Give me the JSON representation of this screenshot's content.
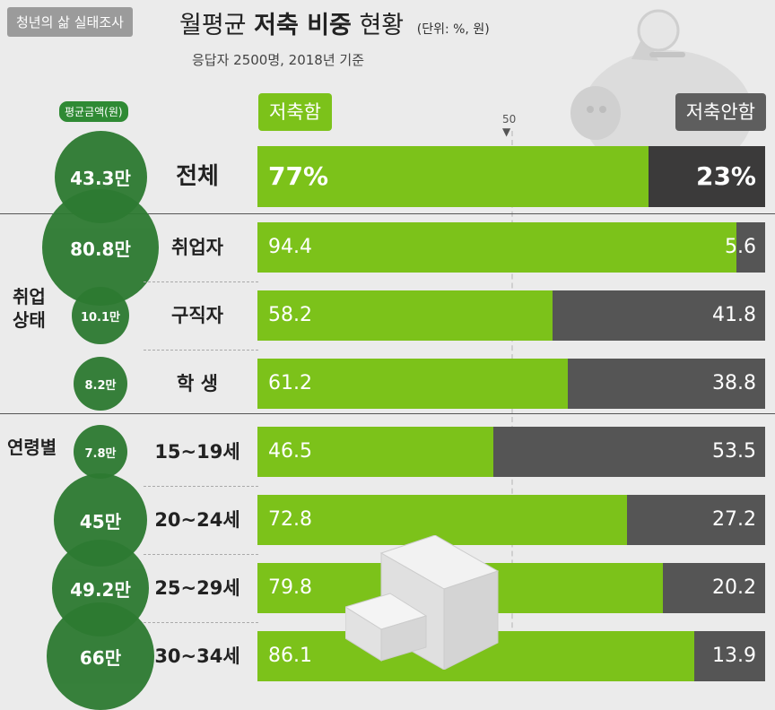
{
  "header": {
    "badge": "청년의 삶 실태조사",
    "title_prefix": "월평균 ",
    "title_bold": "저축 비중",
    "title_suffix": " 현황",
    "unit": "(단위: %, 원)",
    "subtitle": "응답자 2500명, 2018년 기준"
  },
  "legend": {
    "save": "저축함",
    "nosave": "저축안함",
    "avg_label": "평균금액(원)",
    "fifty_mark": "50"
  },
  "groups": {
    "employment": "취업\n상태",
    "age": "연령별"
  },
  "colors": {
    "save": "#7cc21a",
    "nosave": "#555555",
    "bubble": "#2d7a31"
  },
  "chart_data": {
    "type": "bar",
    "orientation": "horizontal",
    "stacked": true,
    "categories": [
      "전체",
      "취업자",
      "구직자",
      "학 생",
      "15~19세",
      "20~24세",
      "25~29세",
      "30~34세"
    ],
    "series": [
      {
        "name": "저축함",
        "values": [
          77,
          94.4,
          58.2,
          61.2,
          46.5,
          72.8,
          79.8,
          86.1
        ]
      },
      {
        "name": "저축안함",
        "values": [
          23,
          5.6,
          41.8,
          38.8,
          53.5,
          27.2,
          20.2,
          13.9
        ]
      }
    ],
    "value_labels_save": [
      "77%",
      "94.4",
      "58.2",
      "61.2",
      "46.5",
      "72.8",
      "79.8",
      "86.1"
    ],
    "value_labels_nosave": [
      "23%",
      "5.6",
      "41.8",
      "38.8",
      "53.5",
      "27.2",
      "20.2",
      "13.9"
    ],
    "avg_amount_labels": [
      "43.3만",
      "80.8만",
      "10.1만",
      "8.2만",
      "7.8만",
      "45만",
      "49.2만",
      "66만"
    ],
    "avg_amount_values": [
      433000,
      808000,
      101000,
      82000,
      78000,
      450000,
      492000,
      660000
    ],
    "xlim": [
      0,
      100
    ]
  }
}
